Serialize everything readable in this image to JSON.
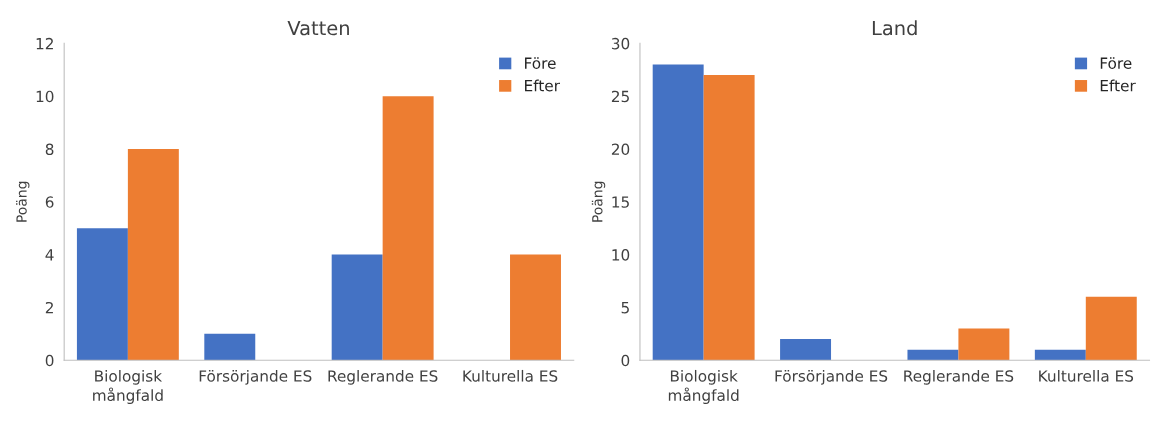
{
  "chart_data": [
    {
      "type": "bar",
      "title": "Vatten",
      "ylabel": "Poäng",
      "categories": [
        "Biologisk\nmångfald",
        "Försörjande ES",
        "Reglerande ES",
        "Kulturella ES"
      ],
      "series": [
        {
          "name": "Före",
          "color": "#4472c4",
          "values": [
            5,
            1,
            4,
            0
          ]
        },
        {
          "name": "Efter",
          "color": "#ed7d31",
          "values": [
            8,
            0,
            10,
            4
          ]
        }
      ],
      "ylim": [
        0,
        12
      ],
      "yticks": [
        0,
        2,
        4,
        6,
        8,
        10,
        12
      ],
      "grid": false,
      "legend": "top right"
    },
    {
      "type": "bar",
      "title": "Land",
      "ylabel": "Poäng",
      "categories": [
        "Biologisk\nmångfald",
        "Försörjande ES",
        "Reglerande ES",
        "Kulturella ES"
      ],
      "series": [
        {
          "name": "Före",
          "color": "#4472c4",
          "values": [
            28,
            2,
            1,
            1
          ]
        },
        {
          "name": "Efter",
          "color": "#ed7d31",
          "values": [
            27,
            0,
            3,
            6
          ]
        }
      ],
      "ylim": [
        0,
        30
      ],
      "yticks": [
        0,
        5,
        10,
        15,
        20,
        25,
        30
      ],
      "grid": false,
      "legend": "top right"
    }
  ]
}
